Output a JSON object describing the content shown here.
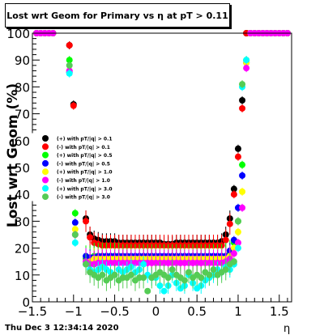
{
  "title": "Lost wrt Geom for Primary vs   η at pT > 0.11",
  "footer": "Thu Dec  3 12:34:14 2020",
  "chart_data": {
    "type": "scatter",
    "title": "Lost wrt Geom for Primary vs   η at pT > 0.11",
    "xlabel": "η",
    "ylabel": "Lost wrt Geom (%)",
    "xlim": [
      -1.5,
      1.65
    ],
    "ylim": [
      0,
      100
    ],
    "xticks": [
      -1.5,
      -1,
      -0.5,
      0,
      0.5,
      1,
      1.5
    ],
    "xtick_labels": [
      "−1.5",
      "−1",
      "−0.5",
      "0",
      "0.5",
      "1",
      "1.5"
    ],
    "yticks": [
      0,
      10,
      20,
      30,
      40,
      50,
      60,
      70,
      80,
      90,
      100
    ],
    "ytick_labels": [
      "0",
      "10",
      "20",
      "30",
      "40",
      "50",
      "60",
      "70",
      "80",
      "90",
      "100"
    ],
    "grid": false,
    "legend_position": "left-middle",
    "series": [
      {
        "name": "(+) with pT/|q| > 0.1",
        "color": "#000000",
        "marker": "circle",
        "x": [
          -1.45,
          -1.4,
          -1.35,
          -1.3,
          -1.25,
          -1.05,
          -1.0,
          -0.85,
          -0.8,
          -0.75,
          -0.7,
          -0.65,
          -0.6,
          -0.55,
          -0.5,
          -0.45,
          -0.4,
          -0.35,
          -0.3,
          -0.25,
          -0.2,
          -0.15,
          -0.1,
          -0.05,
          0.0,
          0.05,
          0.1,
          0.15,
          0.2,
          0.25,
          0.3,
          0.35,
          0.4,
          0.45,
          0.5,
          0.55,
          0.6,
          0.65,
          0.7,
          0.75,
          0.8,
          0.85,
          0.9,
          0.95,
          1.0,
          1.05,
          1.1,
          1.15,
          1.2,
          1.25,
          1.3,
          1.35,
          1.4,
          1.45,
          1.5,
          1.55,
          1.6
        ],
        "y": [
          100,
          100,
          100,
          100,
          100,
          95.5,
          73.5,
          31,
          25,
          23.5,
          23,
          22.5,
          22.5,
          22.5,
          22.5,
          22,
          22,
          22,
          22,
          22,
          22,
          22,
          22,
          22,
          22,
          22,
          21.5,
          21.5,
          21.5,
          22,
          22,
          22,
          22,
          22,
          22,
          22,
          22,
          22,
          22,
          22,
          22.5,
          25,
          31,
          42,
          57,
          75,
          100,
          100,
          100,
          100,
          100,
          100,
          100,
          100,
          100,
          100,
          100
        ]
      },
      {
        "name": "(-) with pT/|q| > 0.1",
        "color": "#ff0000",
        "marker": "circle",
        "x": [
          -1.45,
          -1.4,
          -1.35,
          -1.3,
          -1.25,
          -1.05,
          -1.0,
          -0.85,
          -0.8,
          -0.75,
          -0.7,
          -0.65,
          -0.6,
          -0.55,
          -0.5,
          -0.45,
          -0.4,
          -0.35,
          -0.3,
          -0.25,
          -0.2,
          -0.15,
          -0.1,
          -0.05,
          0.0,
          0.05,
          0.1,
          0.15,
          0.2,
          0.25,
          0.3,
          0.35,
          0.4,
          0.45,
          0.5,
          0.55,
          0.6,
          0.65,
          0.7,
          0.75,
          0.8,
          0.85,
          0.9,
          0.95,
          1.0,
          1.05,
          1.1,
          1.15,
          1.2,
          1.25,
          1.3,
          1.35,
          1.4,
          1.45,
          1.5,
          1.55,
          1.6
        ],
        "y": [
          100,
          100,
          100,
          100,
          100,
          95.5,
          73,
          30,
          24,
          22,
          21.5,
          21,
          21,
          21,
          21,
          21,
          21,
          21,
          21,
          21,
          21,
          21,
          21,
          21,
          21,
          21,
          21,
          21,
          21,
          21,
          21,
          21,
          21,
          21,
          21,
          21,
          21,
          21,
          21,
          21,
          21,
          23,
          29,
          40,
          54,
          72,
          100,
          100,
          100,
          100,
          100,
          100,
          100,
          100,
          100,
          100,
          100
        ]
      },
      {
        "name": "(+) with pT/|q| > 0.5",
        "color": "#00ff00",
        "marker": "circle",
        "x": [
          -1.45,
          -1.4,
          -1.35,
          -1.3,
          -1.25,
          -1.05,
          -0.98,
          -0.85,
          -0.8,
          -0.75,
          -0.7,
          -0.65,
          -0.6,
          -0.55,
          -0.5,
          -0.45,
          -0.4,
          -0.35,
          -0.3,
          -0.25,
          -0.2,
          -0.15,
          -0.1,
          -0.05,
          0.0,
          0.05,
          0.1,
          0.15,
          0.2,
          0.25,
          0.3,
          0.35,
          0.4,
          0.45,
          0.5,
          0.55,
          0.6,
          0.65,
          0.7,
          0.75,
          0.8,
          0.85,
          0.9,
          0.95,
          1.0,
          1.05,
          1.1,
          1.15,
          1.2,
          1.25,
          1.3,
          1.35,
          1.4,
          1.45,
          1.5,
          1.55,
          1.6
        ],
        "y": [
          100,
          100,
          100,
          100,
          100,
          90,
          33,
          16,
          16,
          17,
          17,
          17,
          17,
          17,
          17,
          17,
          16.5,
          16.5,
          16.5,
          16.5,
          16.5,
          16.5,
          16.5,
          16.5,
          16.5,
          16.5,
          16.5,
          16.5,
          16.5,
          16.5,
          16.5,
          16.5,
          16.5,
          16.5,
          16.5,
          16.5,
          16.5,
          16.5,
          16.5,
          16.5,
          16.5,
          17,
          18,
          22,
          30,
          51,
          90,
          100,
          100,
          100,
          100,
          100,
          100,
          100,
          100,
          100,
          100
        ]
      },
      {
        "name": "(-) with pT/|q| > 0.5",
        "color": "#0000ff",
        "marker": "circle",
        "x": [
          -1.45,
          -1.4,
          -1.35,
          -1.3,
          -1.25,
          -1.05,
          -0.98,
          -0.85,
          -0.8,
          -0.75,
          -0.7,
          -0.65,
          -0.6,
          -0.55,
          -0.5,
          -0.45,
          -0.4,
          -0.35,
          -0.3,
          -0.25,
          -0.2,
          -0.15,
          -0.1,
          -0.05,
          0.0,
          0.05,
          0.1,
          0.15,
          0.2,
          0.25,
          0.3,
          0.35,
          0.4,
          0.45,
          0.5,
          0.55,
          0.6,
          0.65,
          0.7,
          0.75,
          0.8,
          0.85,
          0.9,
          0.95,
          1.0,
          1.05,
          1.1,
          1.15,
          1.2,
          1.25,
          1.3,
          1.35,
          1.4,
          1.45,
          1.5,
          1.55,
          1.6
        ],
        "y": [
          100,
          100,
          100,
          100,
          100,
          85.5,
          29.5,
          17,
          16.5,
          16.5,
          17,
          17,
          17,
          17,
          17,
          17,
          17,
          17,
          17,
          17,
          17,
          17,
          17,
          17,
          17,
          17,
          17,
          17,
          17,
          17,
          17,
          17,
          17,
          17,
          17,
          17,
          17,
          17,
          17,
          17,
          17,
          17,
          19,
          23,
          35,
          47,
          89,
          100,
          100,
          100,
          100,
          100,
          100,
          100,
          100,
          100,
          100
        ]
      },
      {
        "name": "(+) with pT/|q| > 1.0",
        "color": "#ffff00",
        "marker": "circle",
        "x": [
          -1.45,
          -1.4,
          -1.35,
          -1.3,
          -1.25,
          -1.05,
          -0.98,
          -0.85,
          -0.8,
          -0.75,
          -0.7,
          -0.65,
          -0.6,
          -0.55,
          -0.5,
          -0.45,
          -0.4,
          -0.35,
          -0.3,
          -0.25,
          -0.2,
          -0.15,
          -0.1,
          -0.05,
          0.0,
          0.05,
          0.1,
          0.15,
          0.2,
          0.25,
          0.3,
          0.35,
          0.4,
          0.45,
          0.5,
          0.55,
          0.6,
          0.65,
          0.7,
          0.75,
          0.8,
          0.85,
          0.9,
          0.95,
          1.0,
          1.05,
          1.1,
          1.15,
          1.2,
          1.25,
          1.3,
          1.35,
          1.4,
          1.45,
          1.5,
          1.55,
          1.6
        ],
        "y": [
          100,
          100,
          100,
          100,
          100,
          86,
          27,
          15,
          15,
          16,
          16,
          16,
          16,
          16,
          16,
          16,
          16,
          16,
          16,
          16,
          16,
          16,
          16,
          16,
          16,
          16,
          16,
          16,
          16,
          16,
          16,
          16,
          16,
          16,
          16,
          16,
          16,
          16,
          16,
          16,
          16,
          16,
          17,
          20,
          26,
          41,
          89,
          100,
          100,
          100,
          100,
          100,
          100,
          100,
          100,
          100,
          100
        ]
      },
      {
        "name": "(-) with pT/|q| > 1.0",
        "color": "#ff00ff",
        "marker": "circle",
        "x": [
          -1.45,
          -1.4,
          -1.35,
          -1.3,
          -1.25,
          -1.05,
          -0.98,
          -0.85,
          -0.8,
          -0.75,
          -0.7,
          -0.65,
          -0.6,
          -0.55,
          -0.5,
          -0.45,
          -0.4,
          -0.35,
          -0.3,
          -0.25,
          -0.2,
          -0.15,
          -0.1,
          -0.05,
          0.0,
          0.05,
          0.1,
          0.15,
          0.2,
          0.25,
          0.3,
          0.35,
          0.4,
          0.45,
          0.5,
          0.55,
          0.6,
          0.65,
          0.7,
          0.75,
          0.8,
          0.85,
          0.9,
          0.95,
          1.0,
          1.05,
          1.1,
          1.15,
          1.2,
          1.25,
          1.3,
          1.35,
          1.4,
          1.45,
          1.5,
          1.55,
          1.6
        ],
        "y": [
          100,
          100,
          100,
          100,
          100,
          86,
          25,
          15,
          14,
          14,
          14.5,
          14.5,
          14.5,
          14.5,
          14.5,
          14.5,
          14.5,
          14.5,
          14.5,
          14.5,
          14.5,
          14.5,
          14.5,
          14.5,
          14.5,
          14.5,
          14.5,
          14.5,
          14.5,
          14.5,
          14.5,
          14.5,
          14.5,
          14.5,
          14.5,
          14.5,
          14.5,
          14.5,
          14.5,
          14.5,
          14.5,
          15,
          16,
          18,
          22,
          35,
          87,
          100,
          100,
          100,
          100,
          100,
          100,
          100,
          100,
          100,
          100
        ]
      },
      {
        "name": "(+) with pT/|q| > 3.0",
        "color": "#00ffff",
        "marker": "circle",
        "x": [
          -1.05,
          -0.98,
          -0.85,
          -0.8,
          -0.75,
          -0.7,
          -0.65,
          -0.6,
          -0.55,
          -0.5,
          -0.45,
          -0.4,
          -0.35,
          -0.3,
          -0.25,
          -0.2,
          -0.15,
          -0.1,
          -0.05,
          0.0,
          0.05,
          0.1,
          0.15,
          0.2,
          0.25,
          0.3,
          0.35,
          0.4,
          0.45,
          0.5,
          0.55,
          0.6,
          0.65,
          0.7,
          0.75,
          0.8,
          0.85,
          0.9,
          0.95,
          1.0,
          1.05,
          1.1
        ],
        "y": [
          85,
          22,
          14,
          12,
          11,
          12,
          13,
          12,
          11,
          10,
          12,
          11,
          12,
          13,
          11,
          12,
          14,
          10,
          9,
          9,
          6,
          4,
          6,
          10,
          7,
          5,
          6,
          10,
          7,
          5,
          6,
          8,
          9,
          10,
          12,
          11,
          13,
          12,
          14,
          20,
          80,
          90
        ]
      },
      {
        "name": "(-) with pT/|q| > 3.0",
        "color": "#55cc55",
        "marker": "circle",
        "x": [
          -1.05,
          -0.98,
          -0.85,
          -0.8,
          -0.75,
          -0.7,
          -0.65,
          -0.6,
          -0.55,
          -0.5,
          -0.45,
          -0.4,
          -0.35,
          -0.3,
          -0.25,
          -0.2,
          -0.15,
          -0.1,
          -0.05,
          0.0,
          0.05,
          0.1,
          0.15,
          0.2,
          0.25,
          0.3,
          0.35,
          0.4,
          0.45,
          0.5,
          0.55,
          0.6,
          0.65,
          0.7,
          0.75,
          0.8,
          0.85,
          0.9,
          0.95,
          1.0,
          1.05
        ],
        "y": [
          88,
          25,
          14,
          11,
          10,
          9,
          10,
          8,
          9,
          10,
          8,
          9,
          9,
          10,
          8,
          9,
          9,
          4,
          9,
          10,
          11,
          10,
          9,
          12,
          10,
          9,
          8,
          11,
          9,
          10,
          9,
          11,
          10,
          12,
          10,
          11,
          12,
          14,
          15,
          30,
          81
        ]
      }
    ]
  }
}
